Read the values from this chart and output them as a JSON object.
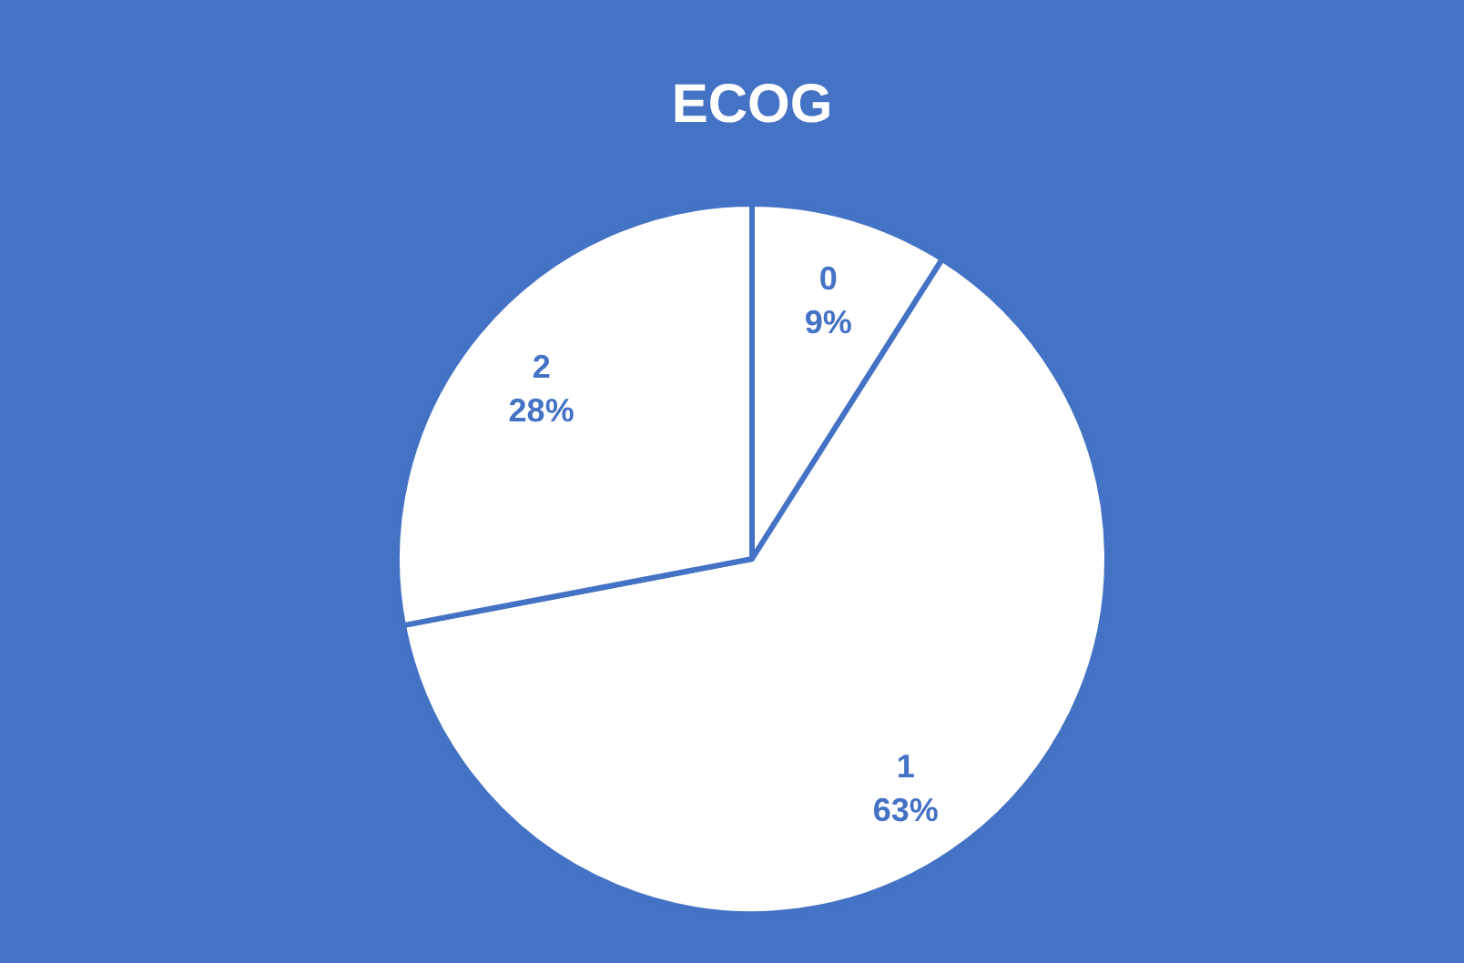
{
  "chart_data": {
    "type": "pie",
    "title": "ECOG",
    "categories": [
      "0",
      "1",
      "2"
    ],
    "values": [
      9,
      63,
      28
    ],
    "colors": [
      "#ffffff",
      "#ffffff",
      "#ffffff"
    ],
    "value_labels": [
      "9%",
      "63%",
      "28%"
    ]
  }
}
